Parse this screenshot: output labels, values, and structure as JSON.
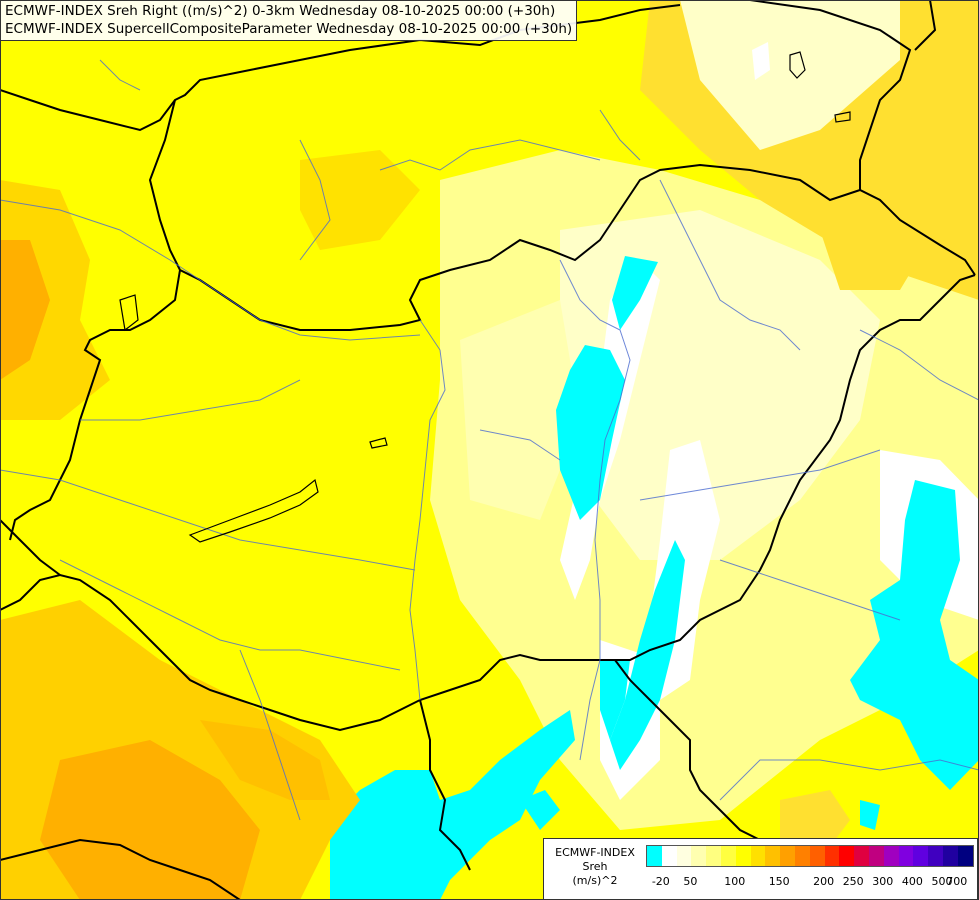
{
  "title_lines": [
    "ECMWF-INDEX Sreh Right ((m/s)^2) 0-3km Wednesday 08-10-2025 00:00 (+30h)",
    "ECMWF-INDEX SupercellCompositeParameter Wednesday 08-10-2025 00:00 (+30h)"
  ],
  "legend": {
    "line1": "ECMWF-INDEX",
    "line2": "Sreh",
    "line3": "(m/s)^2",
    "colors": [
      "#00ffff",
      "#ffffff",
      "#ffffe0",
      "#ffffb0",
      "#ffff80",
      "#ffff40",
      "#ffff00",
      "#ffe000",
      "#ffc000",
      "#ffa000",
      "#ff8000",
      "#ff6000",
      "#ff3000",
      "#ff0000",
      "#e00040",
      "#c00080",
      "#a000c0",
      "#8000e0",
      "#6000e0",
      "#4000c0",
      "#2000a0",
      "#000080"
    ],
    "ticks": [
      "-20",
      "50",
      "100",
      "150",
      "200",
      "250",
      "300",
      "400",
      "500",
      "700"
    ]
  },
  "field_colors": {
    "background": "#ffff00",
    "light_yellow": "#ffffa0",
    "pale_yellow": "#ffffd0",
    "white": "#ffffff",
    "cyan": "#00ffff",
    "gold": "#ffd700",
    "orange": "#ffb000",
    "dark_orange": "#ffa000"
  }
}
